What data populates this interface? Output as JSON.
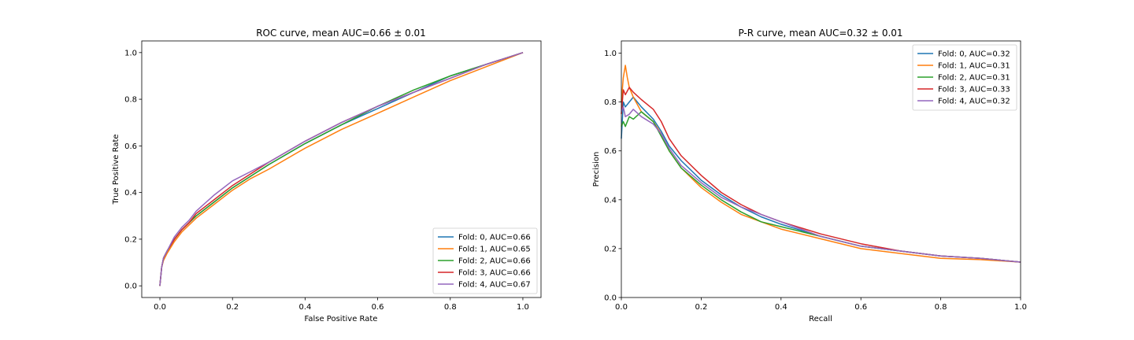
{
  "chart_data": [
    {
      "type": "line",
      "title": "ROC curve, mean AUC=0.66 ± 0.01",
      "xlabel": "False Positive Rate",
      "ylabel": "True Positive Rate",
      "xlim": [
        -0.05,
        1.05
      ],
      "ylim": [
        -0.05,
        1.05
      ],
      "xticks": [
        0.0,
        0.2,
        0.4,
        0.6,
        0.8,
        1.0
      ],
      "yticks": [
        0.0,
        0.2,
        0.4,
        0.6,
        0.8,
        1.0
      ],
      "xtick_labels": [
        "0.0",
        "0.2",
        "0.4",
        "0.6",
        "0.8",
        "1.0"
      ],
      "ytick_labels": [
        "0.0",
        "0.2",
        "0.4",
        "0.6",
        "0.8",
        "1.0"
      ],
      "grid": false,
      "legend_position": "lower-right",
      "series": [
        {
          "name": "Fold: 0, AUC=0.66",
          "color": "#1f77b4",
          "x": [
            0,
            0.005,
            0.01,
            0.02,
            0.04,
            0.06,
            0.08,
            0.1,
            0.15,
            0.2,
            0.25,
            0.3,
            0.4,
            0.5,
            0.6,
            0.7,
            0.8,
            0.9,
            1.0
          ],
          "y": [
            0,
            0.08,
            0.12,
            0.15,
            0.2,
            0.24,
            0.27,
            0.3,
            0.36,
            0.42,
            0.47,
            0.52,
            0.61,
            0.69,
            0.76,
            0.83,
            0.9,
            0.95,
            1.0
          ]
        },
        {
          "name": "Fold: 1, AUC=0.65",
          "color": "#ff7f0e",
          "x": [
            0,
            0.005,
            0.01,
            0.02,
            0.04,
            0.06,
            0.08,
            0.1,
            0.15,
            0.2,
            0.25,
            0.3,
            0.4,
            0.5,
            0.6,
            0.7,
            0.8,
            0.9,
            1.0
          ],
          "y": [
            0,
            0.08,
            0.11,
            0.14,
            0.19,
            0.23,
            0.26,
            0.29,
            0.35,
            0.41,
            0.46,
            0.5,
            0.59,
            0.67,
            0.74,
            0.81,
            0.88,
            0.94,
            1.0
          ]
        },
        {
          "name": "Fold: 2, AUC=0.66",
          "color": "#2ca02c",
          "x": [
            0,
            0.005,
            0.01,
            0.02,
            0.04,
            0.06,
            0.08,
            0.1,
            0.15,
            0.2,
            0.25,
            0.3,
            0.4,
            0.5,
            0.6,
            0.7,
            0.8,
            0.9,
            1.0
          ],
          "y": [
            0,
            0.08,
            0.12,
            0.15,
            0.2,
            0.24,
            0.27,
            0.3,
            0.36,
            0.42,
            0.47,
            0.52,
            0.61,
            0.69,
            0.77,
            0.84,
            0.9,
            0.95,
            1.0
          ]
        },
        {
          "name": "Fold: 3, AUC=0.66",
          "color": "#d62728",
          "x": [
            0,
            0.005,
            0.01,
            0.02,
            0.04,
            0.06,
            0.08,
            0.1,
            0.15,
            0.2,
            0.25,
            0.3,
            0.4,
            0.5,
            0.6,
            0.7,
            0.8,
            0.9,
            1.0
          ],
          "y": [
            0,
            0.08,
            0.12,
            0.15,
            0.2,
            0.24,
            0.27,
            0.31,
            0.37,
            0.43,
            0.48,
            0.53,
            0.62,
            0.7,
            0.77,
            0.83,
            0.89,
            0.95,
            1.0
          ]
        },
        {
          "name": "Fold: 4, AUC=0.67",
          "color": "#9467bd",
          "x": [
            0,
            0.005,
            0.01,
            0.02,
            0.04,
            0.06,
            0.08,
            0.1,
            0.15,
            0.2,
            0.25,
            0.3,
            0.4,
            0.5,
            0.6,
            0.7,
            0.8,
            0.9,
            1.0
          ],
          "y": [
            0,
            0.08,
            0.12,
            0.15,
            0.21,
            0.25,
            0.28,
            0.32,
            0.39,
            0.45,
            0.49,
            0.53,
            0.62,
            0.7,
            0.77,
            0.83,
            0.89,
            0.95,
            1.0
          ]
        }
      ]
    },
    {
      "type": "line",
      "title": "P-R curve, mean AUC=0.32 ± 0.01",
      "xlabel": "Recall",
      "ylabel": "Precision",
      "xlim": [
        0,
        1.0
      ],
      "ylim": [
        0,
        1.05
      ],
      "xticks": [
        0.0,
        0.2,
        0.4,
        0.6,
        0.8,
        1.0
      ],
      "yticks": [
        0.0,
        0.2,
        0.4,
        0.6,
        0.8,
        1.0
      ],
      "xtick_labels": [
        "0.0",
        "0.2",
        "0.4",
        "0.6",
        "0.8",
        "1.0"
      ],
      "ytick_labels": [
        "0.0",
        "0.2",
        "0.4",
        "0.6",
        "0.8",
        "1.0"
      ],
      "grid": false,
      "legend_position": "upper-right",
      "series": [
        {
          "name": "Fold: 0, AUC=0.32",
          "color": "#1f77b4",
          "x": [
            0,
            0.005,
            0.01,
            0.02,
            0.03,
            0.05,
            0.08,
            0.1,
            0.12,
            0.15,
            0.2,
            0.25,
            0.3,
            0.35,
            0.4,
            0.5,
            0.6,
            0.7,
            0.8,
            0.9,
            1.0
          ],
          "y": [
            0.65,
            0.8,
            0.78,
            0.8,
            0.82,
            0.78,
            0.73,
            0.68,
            0.62,
            0.56,
            0.48,
            0.42,
            0.37,
            0.33,
            0.3,
            0.25,
            0.21,
            0.19,
            0.17,
            0.16,
            0.145
          ]
        },
        {
          "name": "Fold: 1, AUC=0.31",
          "color": "#ff7f0e",
          "x": [
            0,
            0.005,
            0.01,
            0.015,
            0.02,
            0.03,
            0.05,
            0.08,
            0.1,
            0.12,
            0.15,
            0.2,
            0.25,
            0.3,
            0.35,
            0.4,
            0.5,
            0.6,
            0.7,
            0.8,
            0.9,
            1.0
          ],
          "y": [
            0.8,
            0.9,
            0.95,
            0.9,
            0.86,
            0.82,
            0.76,
            0.72,
            0.67,
            0.6,
            0.53,
            0.45,
            0.39,
            0.34,
            0.31,
            0.28,
            0.24,
            0.2,
            0.18,
            0.16,
            0.155,
            0.145
          ]
        },
        {
          "name": "Fold: 2, AUC=0.31",
          "color": "#2ca02c",
          "x": [
            0,
            0.005,
            0.01,
            0.02,
            0.03,
            0.05,
            0.08,
            0.1,
            0.12,
            0.15,
            0.2,
            0.25,
            0.3,
            0.35,
            0.4,
            0.5,
            0.6,
            0.7,
            0.8,
            0.9,
            1.0
          ],
          "y": [
            0.7,
            0.72,
            0.7,
            0.74,
            0.73,
            0.76,
            0.72,
            0.66,
            0.6,
            0.53,
            0.46,
            0.4,
            0.35,
            0.31,
            0.29,
            0.25,
            0.21,
            0.19,
            0.17,
            0.16,
            0.145
          ]
        },
        {
          "name": "Fold: 3, AUC=0.33",
          "color": "#d62728",
          "x": [
            0,
            0.005,
            0.01,
            0.02,
            0.03,
            0.05,
            0.08,
            0.1,
            0.12,
            0.15,
            0.2,
            0.25,
            0.3,
            0.35,
            0.4,
            0.5,
            0.6,
            0.7,
            0.8,
            0.9,
            1.0
          ],
          "y": [
            0.75,
            0.85,
            0.83,
            0.86,
            0.84,
            0.81,
            0.77,
            0.72,
            0.65,
            0.58,
            0.5,
            0.43,
            0.38,
            0.34,
            0.31,
            0.26,
            0.22,
            0.19,
            0.17,
            0.16,
            0.145
          ]
        },
        {
          "name": "Fold: 4, AUC=0.32",
          "color": "#9467bd",
          "x": [
            0,
            0.005,
            0.01,
            0.02,
            0.03,
            0.05,
            0.08,
            0.1,
            0.12,
            0.15,
            0.2,
            0.25,
            0.3,
            0.35,
            0.4,
            0.5,
            0.6,
            0.7,
            0.8,
            0.9,
            1.0
          ],
          "y": [
            0.76,
            0.78,
            0.74,
            0.75,
            0.77,
            0.74,
            0.71,
            0.67,
            0.61,
            0.54,
            0.47,
            0.41,
            0.37,
            0.34,
            0.31,
            0.25,
            0.21,
            0.19,
            0.17,
            0.16,
            0.145
          ]
        }
      ]
    }
  ]
}
